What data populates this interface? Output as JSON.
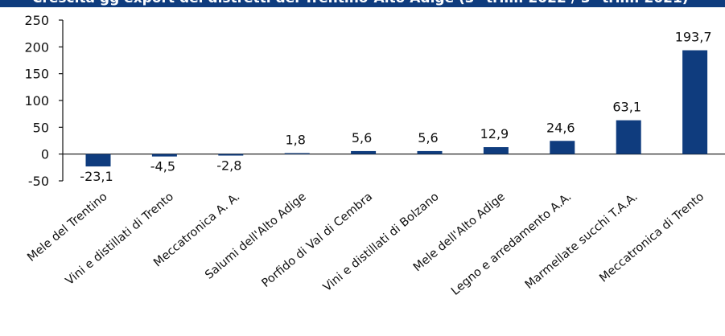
{
  "header": {
    "title": "Crescita gg export dei distretti del Trentino-Alto Adige (3° trim. 2022 / 3° trim. 2021)"
  },
  "colors": {
    "bar": "#0f3c7e",
    "axis": "#111111",
    "header": "#0f3c7e"
  },
  "chart_data": {
    "type": "bar",
    "categories": [
      "Mele del Trentino",
      "Vini e distillati di Trento",
      "Meccatronica A. A.",
      "Salumi dell'Alto Adige",
      "Porfido di Val di Cembra",
      "Vini e distillati di Bolzano",
      "Mele dell'Alto Adige",
      "Legno e arredamento A.A.",
      "Marmellate succhi T.A.A.",
      "Meccatronica di Trento"
    ],
    "values": [
      -23.1,
      -4.5,
      -2.8,
      1.8,
      5.6,
      5.6,
      12.9,
      24.6,
      63.1,
      193.7
    ],
    "data_labels": [
      "-23,1",
      "-4,5",
      "-2,8",
      "1,8",
      "5,6",
      "5,6",
      "12,9",
      "24,6",
      "63,1",
      "193,7"
    ],
    "y_ticks": [
      -50,
      0,
      50,
      100,
      150,
      200,
      250
    ],
    "ylim": [
      -50,
      250
    ],
    "grid": false,
    "legend": "none"
  }
}
